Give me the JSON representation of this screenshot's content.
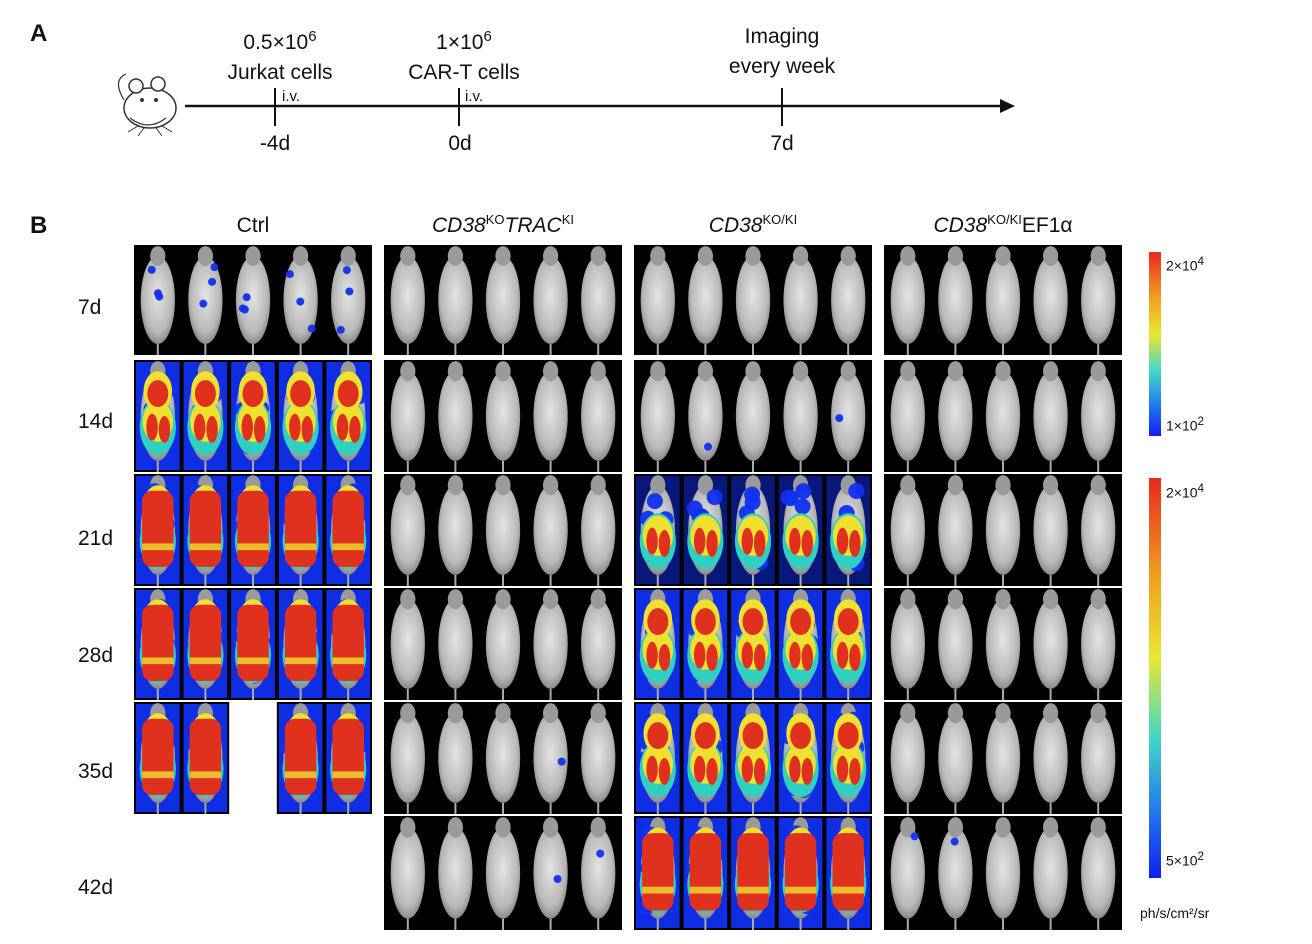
{
  "panel_a": {
    "label": "A",
    "events": [
      {
        "line1": "0.5×10",
        "sup1": "6",
        "line2": "Jurkat cells",
        "route": "i.v.",
        "day": "-4d"
      },
      {
        "line1": "1×10",
        "sup1": "6",
        "line2": "CAR-T cells",
        "route": "i.v.",
        "day": "0d"
      },
      {
        "line1": "Imaging",
        "sup1": "",
        "line2": "every week",
        "route": "",
        "day": "7d"
      }
    ]
  },
  "panel_b": {
    "label": "B",
    "groups": [
      {
        "pre": "Ctrl",
        "sup1": "",
        "mid": "",
        "sup2": "",
        "post": "",
        "italic_pre": false,
        "italic_mid": false
      },
      {
        "pre": "CD38",
        "sup1": "KO",
        "mid": "TRAC",
        "sup2": "KI",
        "post": "",
        "italic_pre": true,
        "italic_mid": true
      },
      {
        "pre": "CD38",
        "sup1": "KO/KI",
        "mid": "",
        "sup2": "",
        "post": "",
        "italic_pre": true,
        "italic_mid": false
      },
      {
        "pre": "CD38",
        "sup1": "KO/KI",
        "mid": "EF1α",
        "sup2": "",
        "post": "",
        "italic_pre": true,
        "italic_mid": false
      }
    ],
    "timepoints": [
      "7d",
      "14d",
      "21d",
      "28d",
      "35d",
      "42d"
    ],
    "signal_intensity": {
      "description_levels": "0=none 1=trace 2=low 3=moderate 4=high 5=saturated",
      "Ctrl": [
        2,
        4,
        5,
        5,
        5,
        null
      ],
      "CD38KO_TRACKI": [
        0,
        0,
        0,
        0,
        1,
        1
      ],
      "CD38KO_KI": [
        0,
        1,
        3,
        4,
        4,
        5
      ],
      "CD38KO_KI_EF1a": [
        0,
        0,
        0,
        0,
        0,
        1
      ]
    },
    "colorbars": [
      {
        "max": "2×10",
        "max_sup": "4",
        "min": "1×10",
        "min_sup": "2"
      },
      {
        "max": "2×10",
        "max_sup": "4",
        "min": "5×10",
        "min_sup": "2"
      }
    ],
    "unit": "ph/s/cm²/sr"
  },
  "colors": {
    "hot": "#e0301e",
    "warm": "#f0e030",
    "cool": "#30d0c0",
    "cold": "#1030f0",
    "mouse": "#c8c8c8",
    "bg": "#000000"
  }
}
